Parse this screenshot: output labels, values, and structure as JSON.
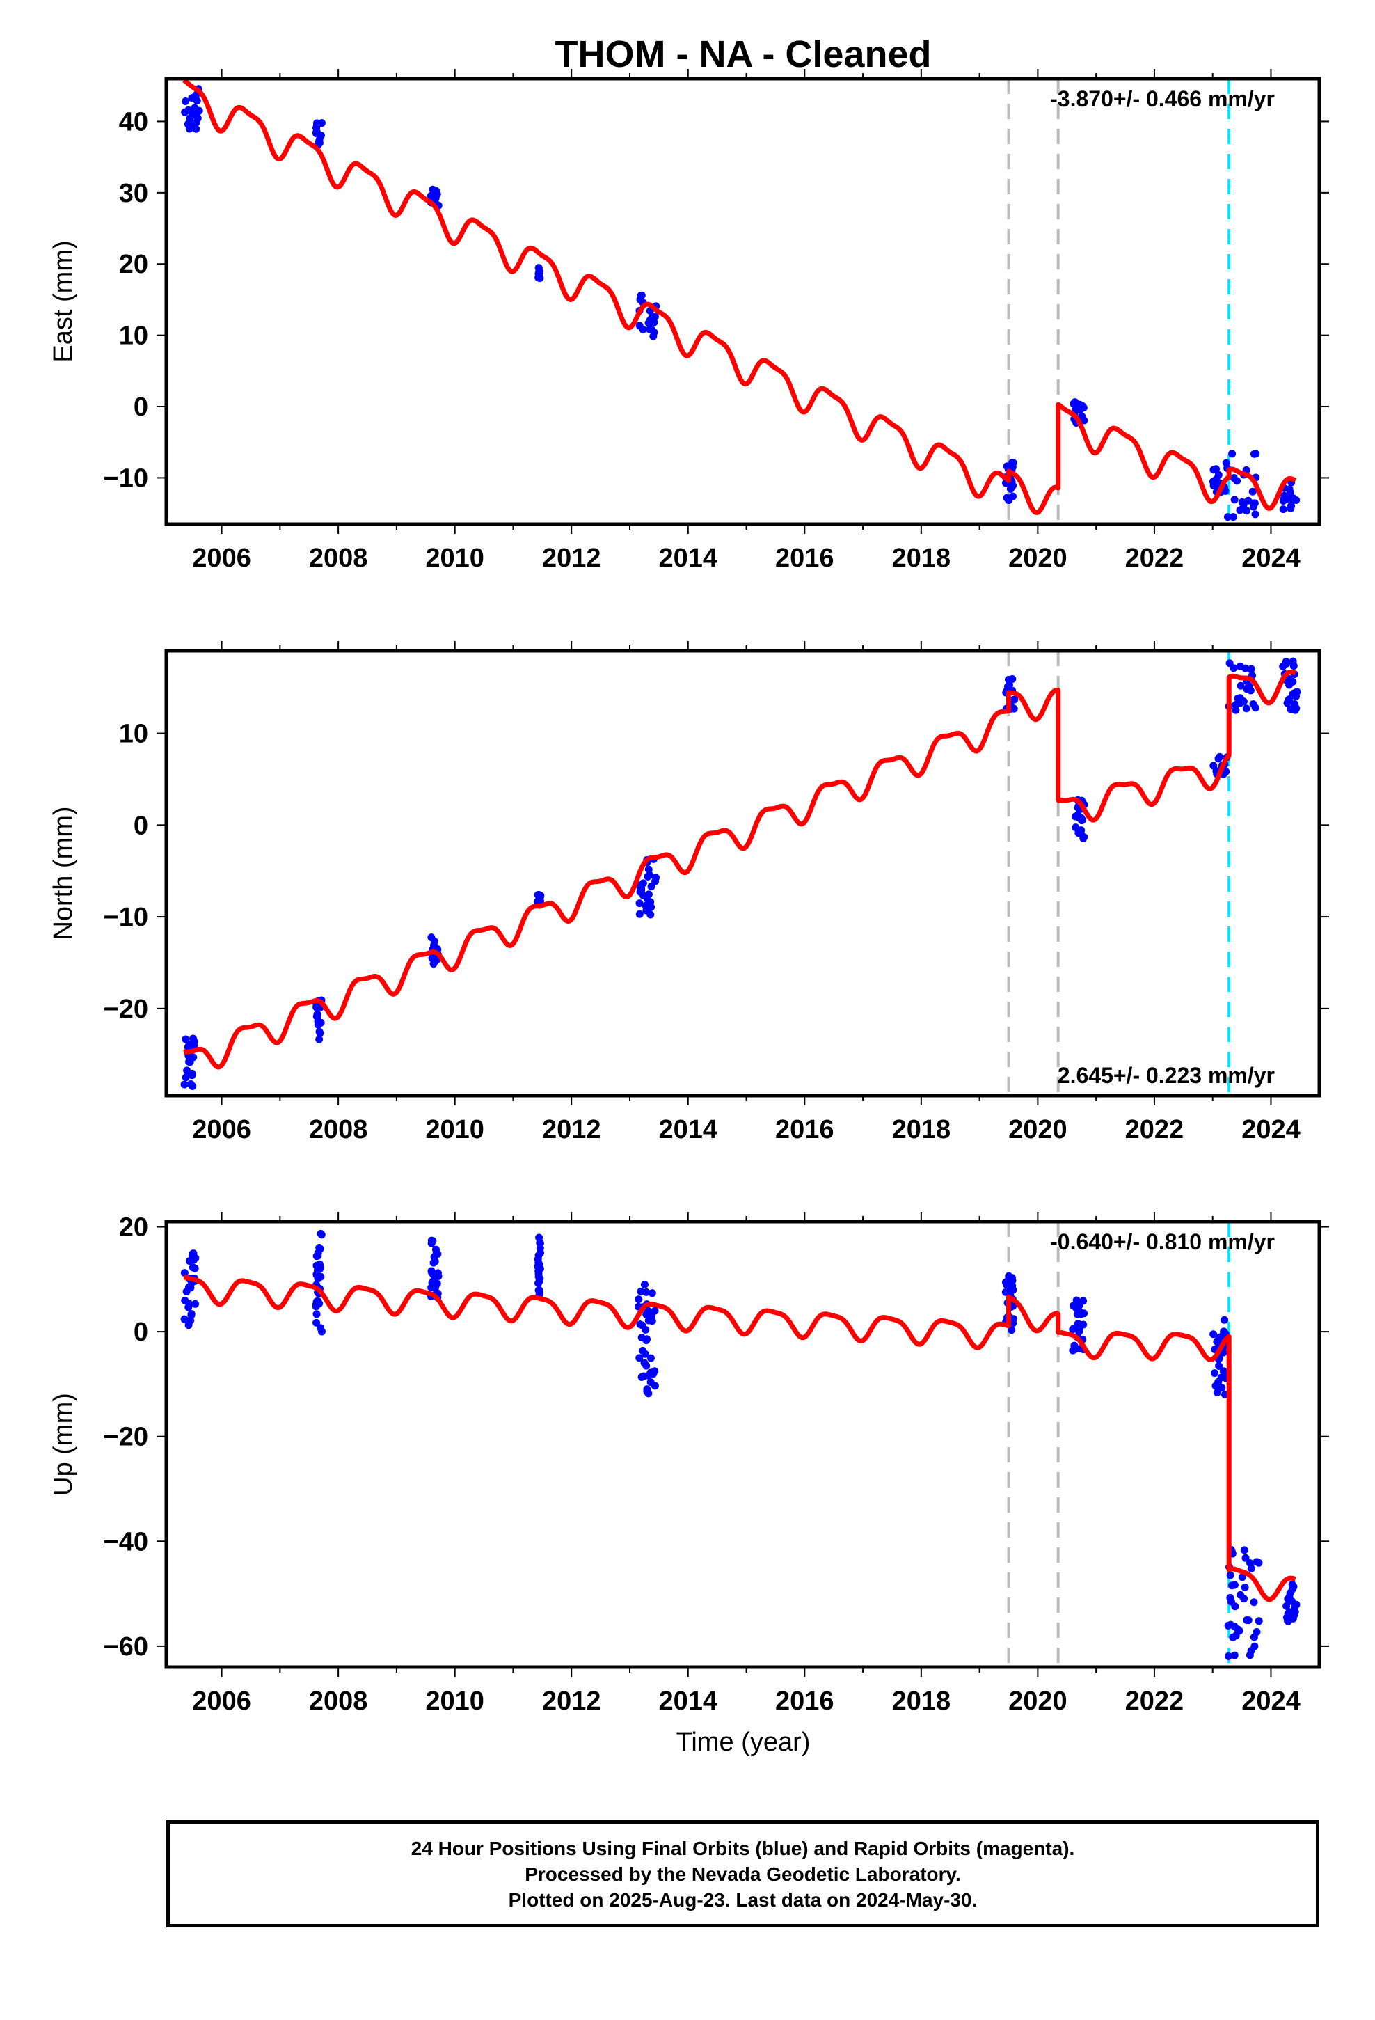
{
  "title": "THOM  - NA - Cleaned",
  "xlabel": "Time (year)",
  "colors": {
    "final_orbits": "#0000ff",
    "model": "#ff0000",
    "event_gray": "#bbbbbb",
    "event_cyan": "#00e5ff"
  },
  "footer": {
    "line1": "24 Hour Positions Using Final Orbits (blue) and Rapid Orbits (magenta).",
    "line2": "Processed by the Nevada Geodetic Laboratory.",
    "line3": "Plotted on 2025-Aug-23. Last data on 2024-May-30."
  },
  "chart_data": [
    {
      "type": "scatter",
      "component": "East",
      "ylabel": "East (mm)",
      "velocity": "-3.870+/- 0.466 mm/yr",
      "velocity_position": "top-right",
      "xlim": [
        2005.05,
        2024.83
      ],
      "ylim": [
        -16.5,
        46.0
      ],
      "xticks": [
        2006,
        2008,
        2010,
        2012,
        2014,
        2016,
        2018,
        2020,
        2022,
        2024
      ],
      "yticks": [
        -10,
        0,
        10,
        20,
        30,
        40
      ],
      "events": [
        {
          "x": 2019.5,
          "color": "gray"
        },
        {
          "x": 2020.35,
          "color": "gray"
        },
        {
          "x": 2023.28,
          "color": "cyan"
        }
      ],
      "clusters": [
        {
          "x": [
            2005.35,
            2005.65
          ],
          "y": [
            38.5,
            45.0
          ]
        },
        {
          "x": [
            2007.62,
            2007.72
          ],
          "y": [
            36.5,
            39.8
          ]
        },
        {
          "x": [
            2009.58,
            2009.72
          ],
          "y": [
            28.0,
            30.5
          ]
        },
        {
          "x": [
            2011.42,
            2011.47
          ],
          "y": [
            18.0,
            19.5
          ]
        },
        {
          "x": [
            2013.15,
            2013.45
          ],
          "y": [
            9.0,
            16.0
          ]
        },
        {
          "x": [
            2019.45,
            2019.58
          ],
          "y": [
            -13.5,
            -7.5
          ]
        },
        {
          "x": [
            2020.6,
            2020.8
          ],
          "y": [
            -2.5,
            1.0
          ]
        },
        {
          "x": [
            2023.0,
            2023.15
          ],
          "y": [
            -12.0,
            -8.5
          ]
        },
        {
          "x": [
            2023.2,
            2023.75
          ],
          "y": [
            -15.5,
            -6.5
          ]
        },
        {
          "x": [
            2024.2,
            2024.45
          ],
          "y": [
            -14.5,
            -10.5
          ]
        }
      ],
      "model": {
        "segments": [
          {
            "x0": 2005.35,
            "x1": 2019.5,
            "y0": 44.0,
            "y1": -11.8
          },
          {
            "x0": 2019.5,
            "x1": 2020.35,
            "y0": -10.5,
            "y1": -13.2
          },
          {
            "x0": 2020.35,
            "x1": 2023.28,
            "y0": -1.5,
            "y1": -11.5
          },
          {
            "x0": 2023.28,
            "x1": 2024.42,
            "y0": -10.5,
            "y1": -12.0
          }
        ],
        "annual_amplitude": 2.2,
        "semiannual_amplitude": 0.7
      }
    },
    {
      "type": "scatter",
      "component": "North",
      "ylabel": "North (mm)",
      "velocity": "2.645+/- 0.223 mm/yr",
      "velocity_position": "bottom-right",
      "xlim": [
        2005.05,
        2024.83
      ],
      "ylim": [
        -29.5,
        19.0
      ],
      "xticks": [
        2006,
        2008,
        2010,
        2012,
        2014,
        2016,
        2018,
        2020,
        2022,
        2024
      ],
      "yticks": [
        -20,
        -10,
        0,
        10
      ],
      "events": [
        {
          "x": 2019.5,
          "color": "gray"
        },
        {
          "x": 2020.35,
          "color": "gray"
        },
        {
          "x": 2023.28,
          "color": "cyan"
        }
      ],
      "clusters": [
        {
          "x": [
            2005.35,
            2005.55
          ],
          "y": [
            -28.5,
            -23.0
          ]
        },
        {
          "x": [
            2007.62,
            2007.72
          ],
          "y": [
            -23.5,
            -19.0
          ]
        },
        {
          "x": [
            2009.58,
            2009.72
          ],
          "y": [
            -15.5,
            -12.0
          ]
        },
        {
          "x": [
            2011.42,
            2011.47
          ],
          "y": [
            -9.0,
            -7.5
          ]
        },
        {
          "x": [
            2013.15,
            2013.45
          ],
          "y": [
            -11.0,
            -3.5
          ]
        },
        {
          "x": [
            2019.45,
            2019.6
          ],
          "y": [
            12.5,
            16.0
          ]
        },
        {
          "x": [
            2020.6,
            2020.8
          ],
          "y": [
            -1.5,
            3.0
          ]
        },
        {
          "x": [
            2023.0,
            2023.25
          ],
          "y": [
            5.5,
            7.5
          ]
        },
        {
          "x": [
            2023.25,
            2023.75
          ],
          "y": [
            12.5,
            18.0
          ]
        },
        {
          "x": [
            2024.2,
            2024.45
          ],
          "y": [
            12.5,
            18.0
          ]
        }
      ],
      "model": {
        "segments": [
          {
            "x0": 2005.35,
            "x1": 2019.5,
            "y0": -26.0,
            "y1": 11.5
          },
          {
            "x0": 2019.5,
            "x1": 2020.35,
            "y0": 13.5,
            "y1": 13.5
          },
          {
            "x0": 2020.35,
            "x1": 2023.28,
            "y0": 1.5,
            "y1": 6.5
          },
          {
            "x0": 2023.28,
            "x1": 2024.42,
            "y0": 15.0,
            "y1": 15.5
          }
        ],
        "annual_amplitude": 1.5,
        "semiannual_amplitude": 0.5
      }
    },
    {
      "type": "scatter",
      "component": "Up",
      "ylabel": "Up (mm)",
      "velocity": "-0.640+/- 0.810 mm/yr",
      "velocity_position": "top-right",
      "xlim": [
        2005.05,
        2024.83
      ],
      "ylim": [
        -64.0,
        21.0
      ],
      "xticks": [
        2006,
        2008,
        2010,
        2012,
        2014,
        2016,
        2018,
        2020,
        2022,
        2024
      ],
      "yticks": [
        -60,
        -40,
        -20,
        0,
        20
      ],
      "events": [
        {
          "x": 2019.5,
          "color": "gray"
        },
        {
          "x": 2020.35,
          "color": "gray"
        },
        {
          "x": 2023.28,
          "color": "cyan"
        }
      ],
      "clusters": [
        {
          "x": [
            2005.35,
            2005.55
          ],
          "y": [
            1.0,
            15.0
          ]
        },
        {
          "x": [
            2007.62,
            2007.72
          ],
          "y": [
            0.0,
            19.0
          ]
        },
        {
          "x": [
            2009.58,
            2009.72
          ],
          "y": [
            6.5,
            17.5
          ]
        },
        {
          "x": [
            2011.42,
            2011.47
          ],
          "y": [
            7.0,
            18.5
          ]
        },
        {
          "x": [
            2013.15,
            2013.45
          ],
          "y": [
            -12.5,
            9.0
          ]
        },
        {
          "x": [
            2019.45,
            2019.6
          ],
          "y": [
            0.0,
            11.0
          ]
        },
        {
          "x": [
            2020.6,
            2020.8
          ],
          "y": [
            -5.0,
            6.0
          ]
        },
        {
          "x": [
            2023.0,
            2023.25
          ],
          "y": [
            -12.5,
            2.5
          ]
        },
        {
          "x": [
            2023.25,
            2023.8
          ],
          "y": [
            -62.0,
            -41.0
          ]
        },
        {
          "x": [
            2024.25,
            2024.45
          ],
          "y": [
            -56.0,
            -48.0
          ]
        }
      ],
      "model": {
        "segments": [
          {
            "x0": 2005.35,
            "x1": 2019.5,
            "y0": 8.5,
            "y1": -0.5
          },
          {
            "x0": 2019.5,
            "x1": 2020.35,
            "y0": 5.0,
            "y1": 1.5
          },
          {
            "x0": 2020.35,
            "x1": 2023.28,
            "y0": -2.0,
            "y1": -2.5
          },
          {
            "x0": 2023.28,
            "x1": 2024.42,
            "y0": -47.0,
            "y1": -49.0
          }
        ],
        "annual_amplitude": 2.3,
        "semiannual_amplitude": 0.6
      }
    }
  ]
}
